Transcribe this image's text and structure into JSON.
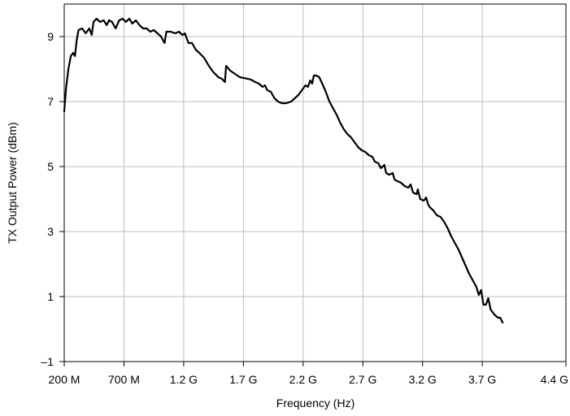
{
  "chart_data": {
    "type": "line",
    "title": "",
    "xlabel": "Frequency (Hz)",
    "ylabel": "TX Output Power (dBm)",
    "xlim": [
      200,
      4400
    ],
    "ylim": [
      -1,
      10
    ],
    "grid": true,
    "x_ticks": [
      {
        "value": 200,
        "label": "200 M"
      },
      {
        "value": 700,
        "label": "700 M"
      },
      {
        "value": 1200,
        "label": "1.2 G"
      },
      {
        "value": 1700,
        "label": "1.7 G"
      },
      {
        "value": 2200,
        "label": "2.2 G"
      },
      {
        "value": 2700,
        "label": "2.7 G"
      },
      {
        "value": 3200,
        "label": "3.2 G"
      },
      {
        "value": 3700,
        "label": "3.7 G"
      },
      {
        "value": 4400,
        "label": "4.4 G"
      }
    ],
    "y_ticks": [
      {
        "value": -1,
        "label": "–1"
      },
      {
        "value": 1,
        "label": "1"
      },
      {
        "value": 3,
        "label": "3"
      },
      {
        "value": 5,
        "label": "5"
      },
      {
        "value": 7,
        "label": "7"
      },
      {
        "value": 9,
        "label": "9"
      }
    ],
    "line_color": "#000000",
    "grid_color": "#bdbdbd",
    "series": [
      {
        "points": [
          [
            200,
            6.7
          ],
          [
            215,
            7.4
          ],
          [
            235,
            8.0
          ],
          [
            255,
            8.4
          ],
          [
            275,
            8.5
          ],
          [
            290,
            8.4
          ],
          [
            305,
            8.9
          ],
          [
            320,
            9.2
          ],
          [
            350,
            9.25
          ],
          [
            380,
            9.1
          ],
          [
            410,
            9.25
          ],
          [
            430,
            9.05
          ],
          [
            445,
            9.45
          ],
          [
            470,
            9.55
          ],
          [
            500,
            9.45
          ],
          [
            530,
            9.5
          ],
          [
            555,
            9.35
          ],
          [
            575,
            9.5
          ],
          [
            600,
            9.45
          ],
          [
            630,
            9.25
          ],
          [
            660,
            9.5
          ],
          [
            690,
            9.55
          ],
          [
            715,
            9.45
          ],
          [
            745,
            9.55
          ],
          [
            770,
            9.4
          ],
          [
            800,
            9.5
          ],
          [
            830,
            9.35
          ],
          [
            860,
            9.25
          ],
          [
            890,
            9.25
          ],
          [
            920,
            9.15
          ],
          [
            950,
            9.2
          ],
          [
            980,
            9.1
          ],
          [
            1010,
            9.0
          ],
          [
            1040,
            8.8
          ],
          [
            1055,
            9.15
          ],
          [
            1090,
            9.15
          ],
          [
            1130,
            9.1
          ],
          [
            1160,
            9.15
          ],
          [
            1190,
            9.05
          ],
          [
            1210,
            9.1
          ],
          [
            1240,
            8.8
          ],
          [
            1270,
            8.8
          ],
          [
            1300,
            8.6
          ],
          [
            1330,
            8.5
          ],
          [
            1370,
            8.35
          ],
          [
            1410,
            8.1
          ],
          [
            1450,
            7.9
          ],
          [
            1490,
            7.75
          ],
          [
            1520,
            7.7
          ],
          [
            1545,
            7.6
          ],
          [
            1555,
            8.1
          ],
          [
            1590,
            7.95
          ],
          [
            1630,
            7.85
          ],
          [
            1670,
            7.75
          ],
          [
            1710,
            7.72
          ],
          [
            1760,
            7.68
          ],
          [
            1800,
            7.6
          ],
          [
            1830,
            7.55
          ],
          [
            1860,
            7.45
          ],
          [
            1880,
            7.5
          ],
          [
            1900,
            7.35
          ],
          [
            1930,
            7.3
          ],
          [
            1960,
            7.1
          ],
          [
            1990,
            7.0
          ],
          [
            2020,
            6.95
          ],
          [
            2060,
            6.95
          ],
          [
            2100,
            7.0
          ],
          [
            2130,
            7.1
          ],
          [
            2160,
            7.2
          ],
          [
            2190,
            7.35
          ],
          [
            2220,
            7.5
          ],
          [
            2240,
            7.45
          ],
          [
            2260,
            7.65
          ],
          [
            2275,
            7.55
          ],
          [
            2290,
            7.8
          ],
          [
            2310,
            7.8
          ],
          [
            2335,
            7.75
          ],
          [
            2360,
            7.55
          ],
          [
            2390,
            7.3
          ],
          [
            2420,
            7.0
          ],
          [
            2450,
            6.8
          ],
          [
            2480,
            6.6
          ],
          [
            2510,
            6.35
          ],
          [
            2540,
            6.15
          ],
          [
            2570,
            6.0
          ],
          [
            2600,
            5.9
          ],
          [
            2630,
            5.75
          ],
          [
            2660,
            5.6
          ],
          [
            2690,
            5.5
          ],
          [
            2720,
            5.45
          ],
          [
            2750,
            5.35
          ],
          [
            2780,
            5.3
          ],
          [
            2800,
            5.15
          ],
          [
            2830,
            5.1
          ],
          [
            2850,
            4.95
          ],
          [
            2880,
            5.05
          ],
          [
            2895,
            4.8
          ],
          [
            2920,
            4.75
          ],
          [
            2950,
            4.8
          ],
          [
            2965,
            4.6
          ],
          [
            2990,
            4.55
          ],
          [
            3020,
            4.5
          ],
          [
            3050,
            4.4
          ],
          [
            3080,
            4.35
          ],
          [
            3100,
            4.45
          ],
          [
            3120,
            4.2
          ],
          [
            3150,
            4.15
          ],
          [
            3160,
            4.3
          ],
          [
            3180,
            4.0
          ],
          [
            3210,
            3.95
          ],
          [
            3230,
            4.05
          ],
          [
            3245,
            3.85
          ],
          [
            3260,
            3.75
          ],
          [
            3290,
            3.65
          ],
          [
            3320,
            3.5
          ],
          [
            3350,
            3.45
          ],
          [
            3380,
            3.3
          ],
          [
            3410,
            3.1
          ],
          [
            3440,
            2.85
          ],
          [
            3470,
            2.65
          ],
          [
            3500,
            2.45
          ],
          [
            3530,
            2.2
          ],
          [
            3560,
            1.95
          ],
          [
            3590,
            1.7
          ],
          [
            3620,
            1.5
          ],
          [
            3650,
            1.3
          ],
          [
            3670,
            1.05
          ],
          [
            3690,
            1.2
          ],
          [
            3710,
            0.75
          ],
          [
            3730,
            0.75
          ],
          [
            3750,
            0.95
          ],
          [
            3770,
            0.6
          ],
          [
            3800,
            0.45
          ],
          [
            3830,
            0.35
          ],
          [
            3850,
            0.35
          ],
          [
            3870,
            0.2
          ]
        ]
      }
    ]
  }
}
